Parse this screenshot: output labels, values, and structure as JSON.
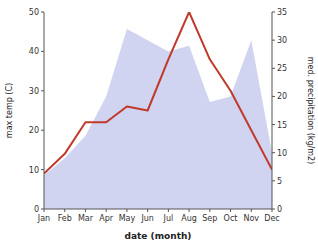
{
  "chart_data": {
    "type": "line",
    "categories": [
      "Jan",
      "Feb",
      "Mar",
      "Apr",
      "May",
      "Jun",
      "Jul",
      "Aug",
      "Sep",
      "Oct",
      "Nov",
      "Dec"
    ],
    "x_label": "date (month)",
    "y_label": "max temp (C)",
    "y2_label": "med. precipitation (kg/m2)",
    "series": [
      {
        "type": "area",
        "axis": "y2",
        "color": "#b0b8e8",
        "values": [
          6,
          9,
          13,
          20,
          32,
          30,
          28,
          29,
          19,
          20,
          30,
          10
        ]
      },
      {
        "type": "line",
        "color": "#c0392b",
        "values": [
          9,
          14,
          22,
          22,
          26,
          25,
          38,
          50,
          38,
          30,
          20,
          10
        ]
      }
    ],
    "ylim": [
      0,
      50
    ],
    "yticks": [
      0,
      10,
      20,
      30,
      40,
      50
    ],
    "y2lim": [
      0,
      35
    ],
    "y2ticks": [
      0,
      5,
      10,
      15,
      20,
      25,
      30,
      35
    ],
    "grid": false
  }
}
